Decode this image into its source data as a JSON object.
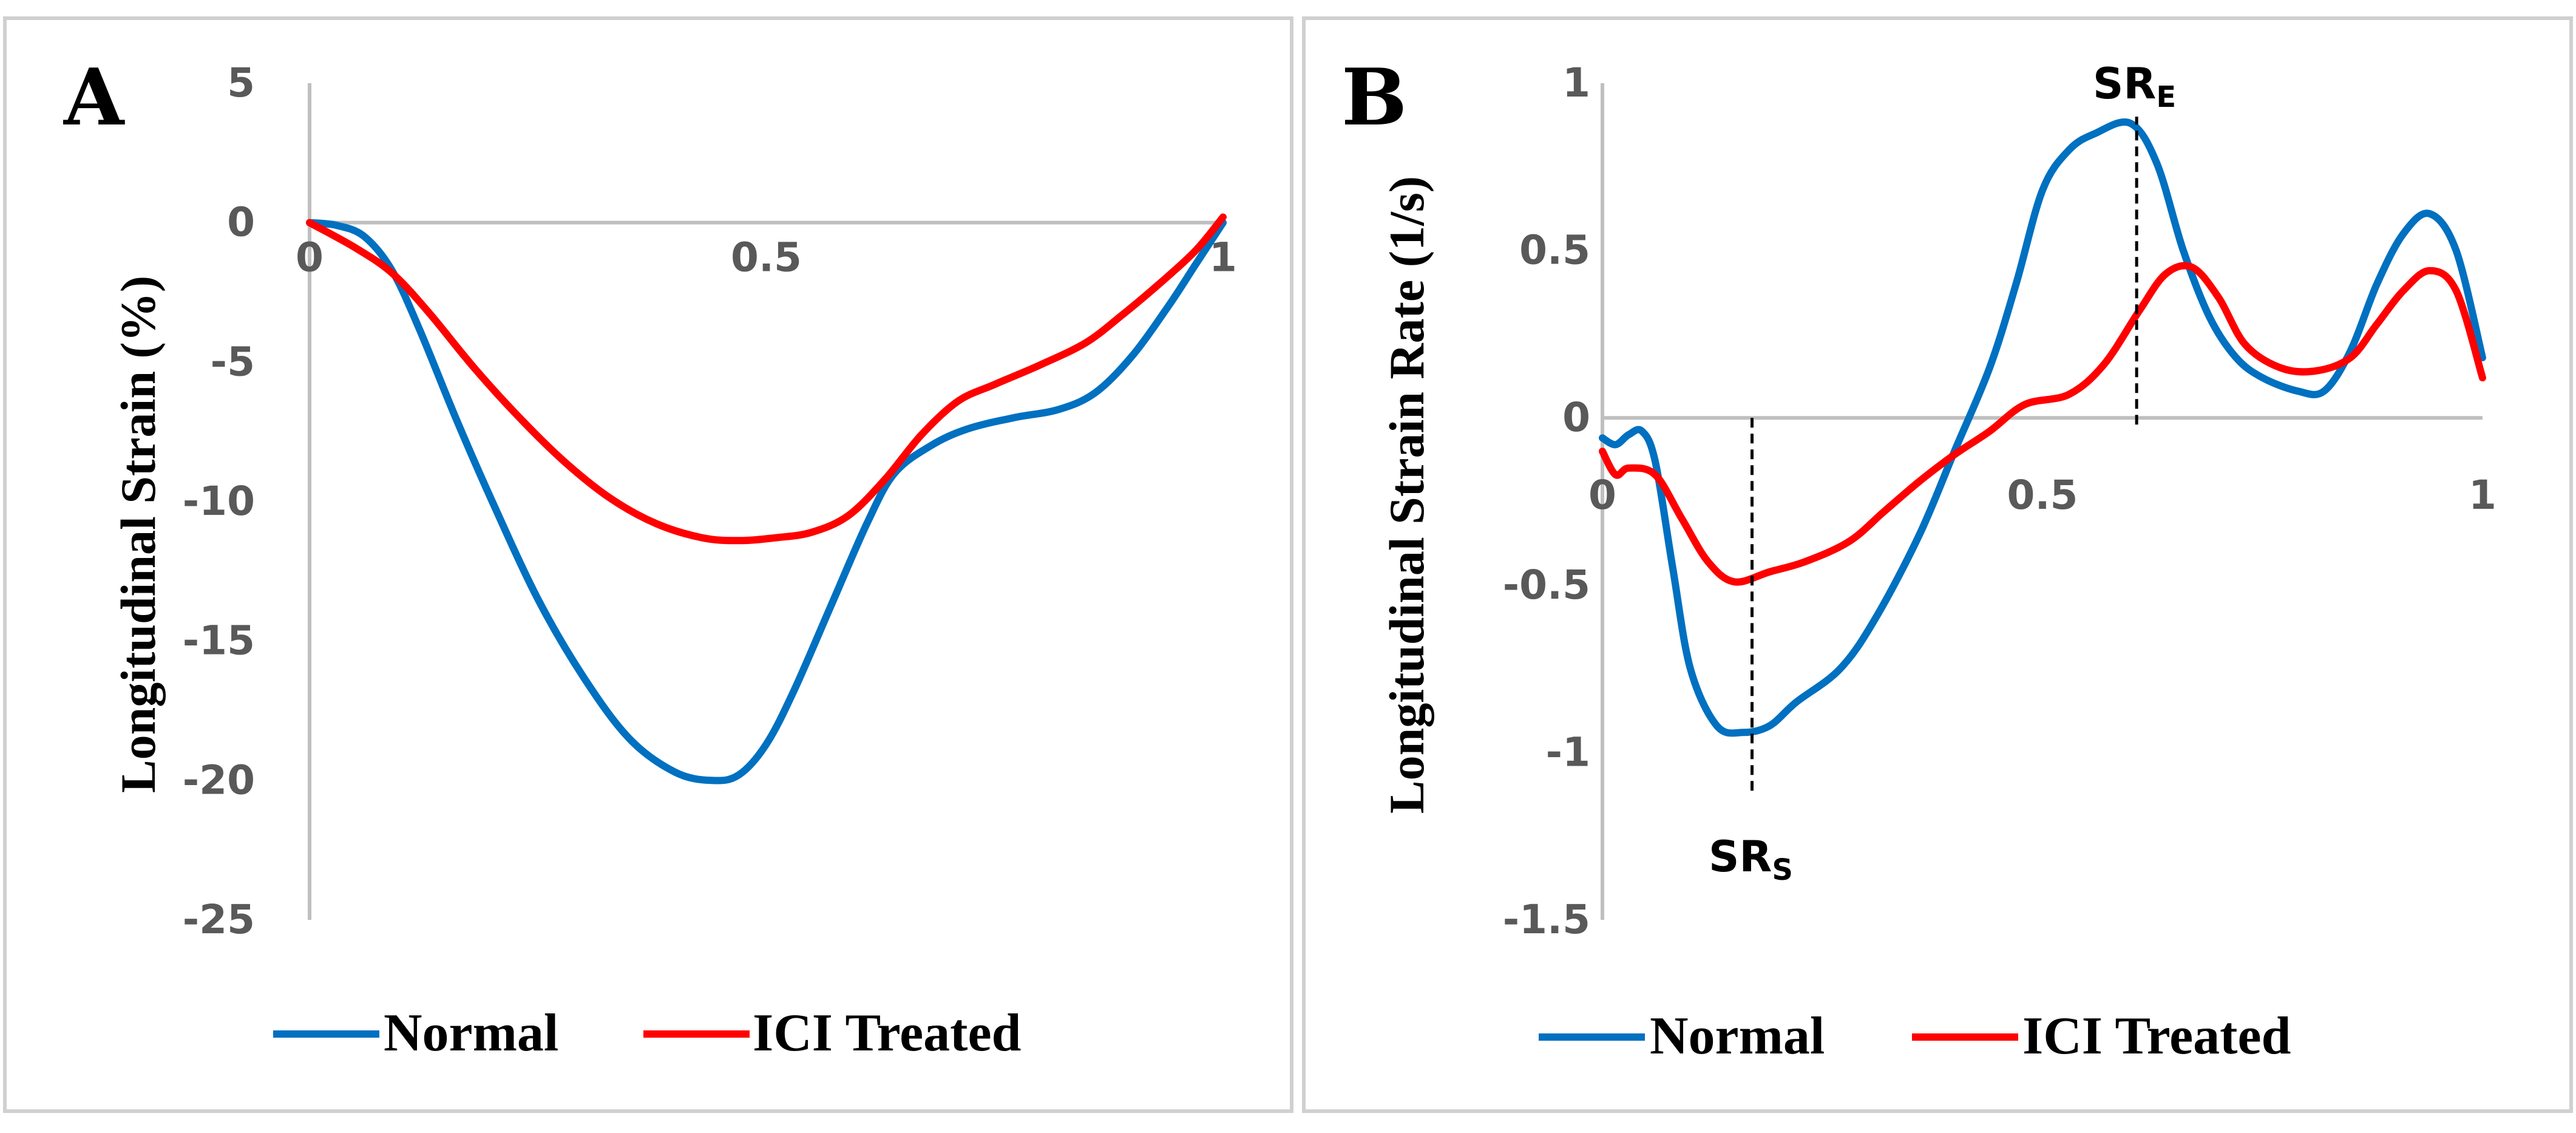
{
  "chart_data": [
    {
      "type": "line",
      "panel": "A",
      "ylabel": "Longitudinal  Strain  (%)",
      "xlabel": "",
      "xlim": [
        0,
        1
      ],
      "ylim": [
        -25,
        5
      ],
      "x_ticks": [
        "0",
        "0.5",
        "1"
      ],
      "y_ticks": [
        "5",
        "0",
        "-5",
        "-10",
        "-15",
        "-20",
        "-25"
      ],
      "legend_position": "bottom",
      "series": [
        {
          "name": "Normal",
          "color": "#0070C0",
          "points": [
            [
              0,
              0
            ],
            [
              0.03,
              -0.1
            ],
            [
              0.06,
              -0.5
            ],
            [
              0.09,
              -1.7
            ],
            [
              0.12,
              -3.8
            ],
            [
              0.16,
              -7.0
            ],
            [
              0.2,
              -10.0
            ],
            [
              0.25,
              -13.5
            ],
            [
              0.3,
              -16.3
            ],
            [
              0.35,
              -18.5
            ],
            [
              0.4,
              -19.7
            ],
            [
              0.44,
              -20.0
            ],
            [
              0.47,
              -19.8
            ],
            [
              0.5,
              -18.7
            ],
            [
              0.53,
              -16.8
            ],
            [
              0.57,
              -13.8
            ],
            [
              0.61,
              -10.8
            ],
            [
              0.64,
              -9.0
            ],
            [
              0.68,
              -8.0
            ],
            [
              0.72,
              -7.4
            ],
            [
              0.77,
              -7.0
            ],
            [
              0.82,
              -6.7
            ],
            [
              0.86,
              -6.1
            ],
            [
              0.9,
              -4.8
            ],
            [
              0.94,
              -3.0
            ],
            [
              0.97,
              -1.5
            ],
            [
              1.0,
              0
            ]
          ]
        },
        {
          "name": "ICI Treated",
          "color": "#FF0000",
          "points": [
            [
              0,
              0
            ],
            [
              0.05,
              -0.9
            ],
            [
              0.09,
              -1.8
            ],
            [
              0.13,
              -3.2
            ],
            [
              0.18,
              -5.2
            ],
            [
              0.23,
              -7.0
            ],
            [
              0.28,
              -8.6
            ],
            [
              0.33,
              -9.9
            ],
            [
              0.38,
              -10.8
            ],
            [
              0.43,
              -11.3
            ],
            [
              0.47,
              -11.4
            ],
            [
              0.51,
              -11.3
            ],
            [
              0.55,
              -11.1
            ],
            [
              0.59,
              -10.5
            ],
            [
              0.63,
              -9.2
            ],
            [
              0.67,
              -7.6
            ],
            [
              0.71,
              -6.4
            ],
            [
              0.75,
              -5.8
            ],
            [
              0.8,
              -5.1
            ],
            [
              0.85,
              -4.3
            ],
            [
              0.89,
              -3.3
            ],
            [
              0.93,
              -2.2
            ],
            [
              0.97,
              -1.0
            ],
            [
              1.0,
              0.2
            ]
          ]
        }
      ]
    },
    {
      "type": "line",
      "panel": "B",
      "ylabel": "Longitudinal  Strain  Rate  (1/s)",
      "xlabel": "",
      "xlim": [
        0,
        1
      ],
      "ylim": [
        -1.5,
        1
      ],
      "x_ticks": [
        "0",
        "0.5",
        "1"
      ],
      "y_ticks": [
        "1",
        "0.5",
        "0",
        "-0.5",
        "-1",
        "-1.5"
      ],
      "legend_position": "bottom",
      "annotations": [
        {
          "label": "SR",
          "sub": "S",
          "x": 0.17
        },
        {
          "label": "SR",
          "sub": "E",
          "x": 0.607
        }
      ],
      "series": [
        {
          "name": "Normal",
          "color": "#0070C0",
          "points": [
            [
              0,
              -0.06
            ],
            [
              0.015,
              -0.08
            ],
            [
              0.03,
              -0.05
            ],
            [
              0.045,
              -0.04
            ],
            [
              0.06,
              -0.13
            ],
            [
              0.08,
              -0.45
            ],
            [
              0.1,
              -0.75
            ],
            [
              0.13,
              -0.92
            ],
            [
              0.16,
              -0.94
            ],
            [
              0.19,
              -0.92
            ],
            [
              0.22,
              -0.85
            ],
            [
              0.27,
              -0.75
            ],
            [
              0.31,
              -0.6
            ],
            [
              0.36,
              -0.35
            ],
            [
              0.4,
              -0.1
            ],
            [
              0.44,
              0.15
            ],
            [
              0.47,
              0.4
            ],
            [
              0.5,
              0.68
            ],
            [
              0.53,
              0.8
            ],
            [
              0.56,
              0.85
            ],
            [
              0.6,
              0.88
            ],
            [
              0.63,
              0.76
            ],
            [
              0.66,
              0.5
            ],
            [
              0.69,
              0.3
            ],
            [
              0.72,
              0.18
            ],
            [
              0.75,
              0.12
            ],
            [
              0.79,
              0.08
            ],
            [
              0.82,
              0.08
            ],
            [
              0.85,
              0.2
            ],
            [
              0.88,
              0.4
            ],
            [
              0.91,
              0.55
            ],
            [
              0.94,
              0.61
            ],
            [
              0.97,
              0.5
            ],
            [
              1.0,
              0.18
            ]
          ]
        },
        {
          "name": "ICI Treated",
          "color": "#FF0000",
          "points": [
            [
              0,
              -0.1
            ],
            [
              0.015,
              -0.17
            ],
            [
              0.03,
              -0.15
            ],
            [
              0.06,
              -0.17
            ],
            [
              0.09,
              -0.3
            ],
            [
              0.12,
              -0.43
            ],
            [
              0.15,
              -0.49
            ],
            [
              0.19,
              -0.46
            ],
            [
              0.23,
              -0.43
            ],
            [
              0.28,
              -0.37
            ],
            [
              0.32,
              -0.28
            ],
            [
              0.36,
              -0.19
            ],
            [
              0.4,
              -0.11
            ],
            [
              0.44,
              -0.04
            ],
            [
              0.48,
              0.04
            ],
            [
              0.53,
              0.07
            ],
            [
              0.57,
              0.16
            ],
            [
              0.61,
              0.32
            ],
            [
              0.64,
              0.43
            ],
            [
              0.67,
              0.45
            ],
            [
              0.7,
              0.36
            ],
            [
              0.73,
              0.22
            ],
            [
              0.77,
              0.15
            ],
            [
              0.81,
              0.14
            ],
            [
              0.85,
              0.18
            ],
            [
              0.88,
              0.28
            ],
            [
              0.91,
              0.38
            ],
            [
              0.94,
              0.44
            ],
            [
              0.97,
              0.38
            ],
            [
              1.0,
              0.12
            ]
          ]
        }
      ]
    }
  ]
}
